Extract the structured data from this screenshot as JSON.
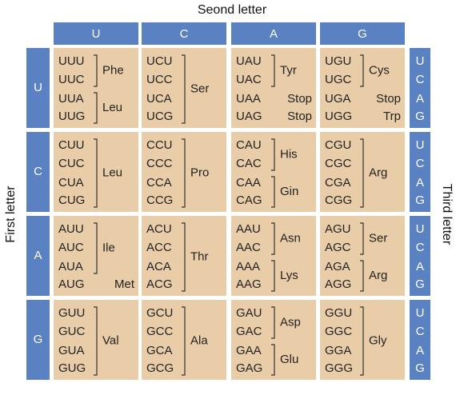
{
  "second_letter_label": "Seond letter",
  "first_letter_label": "First letter",
  "third_letter_label": "Third letter",
  "second_letters": [
    "U",
    "C",
    "A",
    "G"
  ],
  "rows": [
    {
      "first_letter": "U",
      "third_letters": [
        "U",
        "C",
        "A",
        "G"
      ],
      "cells": [
        [
          {
            "codons": [
              "UUU",
              "UUC"
            ],
            "amino_acid": "Phe"
          },
          {
            "codons": [
              "UUA",
              "UUG"
            ],
            "amino_acid": "Leu"
          }
        ],
        [
          {
            "codons": [
              "UCU",
              "UCC",
              "UCA",
              "UCG"
            ],
            "amino_acid": "Ser"
          }
        ],
        [
          {
            "codons": [
              "UAU",
              "UAC"
            ],
            "amino_acid": "Tyr"
          },
          {
            "codons": [
              "UAA"
            ],
            "amino_acid": "Stop"
          },
          {
            "codons": [
              "UAG"
            ],
            "amino_acid": "Stop"
          }
        ],
        [
          {
            "codons": [
              "UGU",
              "UGC"
            ],
            "amino_acid": "Cys"
          },
          {
            "codons": [
              "UGA"
            ],
            "amino_acid": "Stop"
          },
          {
            "codons": [
              "UGG"
            ],
            "amino_acid": "Trp"
          }
        ]
      ]
    },
    {
      "first_letter": "C",
      "third_letters": [
        "U",
        "C",
        "A",
        "G"
      ],
      "cells": [
        [
          {
            "codons": [
              "CUU",
              "CUC",
              "CUA",
              "CUG"
            ],
            "amino_acid": "Leu"
          }
        ],
        [
          {
            "codons": [
              "CCU",
              "CCC",
              "CCA",
              "CCG"
            ],
            "amino_acid": "Pro"
          }
        ],
        [
          {
            "codons": [
              "CAU",
              "CAC"
            ],
            "amino_acid": "His"
          },
          {
            "codons": [
              "CAA",
              "CAG"
            ],
            "amino_acid": "Gin"
          }
        ],
        [
          {
            "codons": [
              "CGU",
              "CGC",
              "CGA",
              "CGG"
            ],
            "amino_acid": "Arg"
          }
        ]
      ]
    },
    {
      "first_letter": "A",
      "third_letters": [
        "U",
        "C",
        "A",
        "G"
      ],
      "cells": [
        [
          {
            "codons": [
              "AUU",
              "AUC",
              "AUA"
            ],
            "amino_acid": "Ile"
          },
          {
            "codons": [
              "AUG"
            ],
            "amino_acid": "Met"
          }
        ],
        [
          {
            "codons": [
              "ACU",
              "ACC",
              "ACA",
              "ACG"
            ],
            "amino_acid": "Thr"
          }
        ],
        [
          {
            "codons": [
              "AAU",
              "AAC"
            ],
            "amino_acid": "Asn"
          },
          {
            "codons": [
              "AAA",
              "AAG"
            ],
            "amino_acid": "Lys"
          }
        ],
        [
          {
            "codons": [
              "AGU",
              "AGC"
            ],
            "amino_acid": "Ser"
          },
          {
            "codons": [
              "AGA",
              "AGG"
            ],
            "amino_acid": "Arg"
          }
        ]
      ]
    },
    {
      "first_letter": "G",
      "third_letters": [
        "U",
        "C",
        "A",
        "G"
      ],
      "cells": [
        [
          {
            "codons": [
              "GUU",
              "GUC",
              "GUA",
              "GUG"
            ],
            "amino_acid": "Val"
          }
        ],
        [
          {
            "codons": [
              "GCU",
              "GCC",
              "GCA",
              "GCG"
            ],
            "amino_acid": "Ala"
          }
        ],
        [
          {
            "codons": [
              "GAU",
              "GAC"
            ],
            "amino_acid": "Asp"
          },
          {
            "codons": [
              "GAA",
              "GAG"
            ],
            "amino_acid": "Glu"
          }
        ],
        [
          {
            "codons": [
              "GGU",
              "GGC",
              "GGA",
              "GGG"
            ],
            "amino_acid": "Gly"
          }
        ]
      ]
    }
  ]
}
